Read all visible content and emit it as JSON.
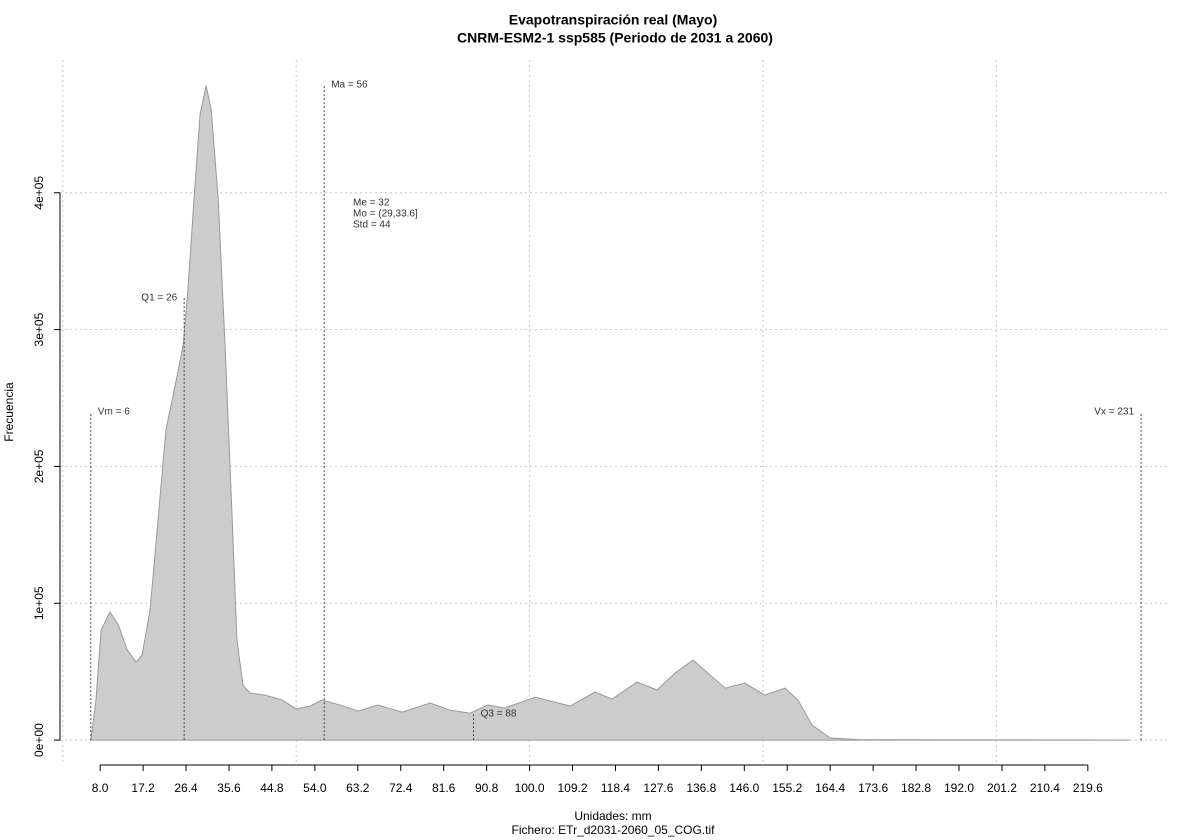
{
  "chart_data": {
    "type": "area",
    "title": "Evapotranspiración real (Mayo)",
    "subtitle": "CNRM-ESM2-1 ssp585 (Periodo de 2031 a 2060)",
    "xlabel": "Unidades: mm",
    "caption": "Fichero: ETr_d2031-2060_05_COG.tif",
    "ylabel": "Frecuencia",
    "color": "#cccccc",
    "grid": true,
    "x": [
      6,
      7.1,
      8.2,
      10.1,
      11.9,
      13.8,
      15.7,
      17.0,
      18.7,
      20.4,
      22.1,
      24.1,
      25.8,
      26.8,
      28.1,
      29.4,
      30.7,
      31.8,
      33.3,
      34.8,
      36.3,
      37.3,
      38.6,
      40.1,
      43.3,
      47.0,
      50.0,
      53.0,
      55.5,
      59.4,
      63.3,
      67.5,
      72.7,
      78.7,
      82.9,
      87.2,
      91.1,
      94.7,
      101.2,
      108.7,
      114.0,
      117.7,
      123.0,
      127.3,
      131.2,
      135.0,
      138.7,
      141.9,
      146.1,
      150.4,
      154.7,
      157.5,
      160.5,
      164.4,
      170.8,
      228.6
    ],
    "values": [
      0,
      29000,
      80400,
      93600,
      84100,
      65800,
      57000,
      62200,
      95100,
      160900,
      226700,
      259600,
      288800,
      329000,
      394900,
      457000,
      478200,
      460700,
      394900,
      285200,
      160900,
      73100,
      40200,
      34400,
      32900,
      29300,
      22700,
      24900,
      29300,
      25600,
      21200,
      25600,
      20500,
      27100,
      21900,
      19700,
      25600,
      23400,
      31400,
      24900,
      35100,
      30000,
      42400,
      36600,
      49000,
      58500,
      47500,
      38000,
      41700,
      32900,
      38000,
      29300,
      11000,
      1500,
      300,
      0
    ],
    "xlim": [
      -0.6,
      237.2
    ],
    "ylim": [
      -16000,
      497000
    ],
    "xticks": [
      {
        "value": 8,
        "label": "8.0"
      },
      17.2,
      26.4,
      35.6,
      44.8,
      {
        "value": 54,
        "label": "54.0"
      },
      63.2,
      72.4,
      81.6,
      90.8,
      {
        "value": 100,
        "label": "100.0"
      },
      109.2,
      118.4,
      127.6,
      136.8,
      {
        "value": 146,
        "label": "146.0"
      },
      155.2,
      164.4,
      173.6,
      182.8,
      {
        "value": 192,
        "label": "192.0"
      },
      201.2,
      210.4,
      219.6
    ],
    "xgrid": [
      0,
      50,
      100,
      150,
      200
    ],
    "yticks": [
      {
        "value": 0,
        "label": "0e+00"
      },
      {
        "value": 100000,
        "label": "1e+05"
      },
      {
        "value": 200000,
        "label": "2e+05"
      },
      {
        "value": 300000,
        "label": "3e+05"
      },
      {
        "value": 400000,
        "label": "4e+05"
      }
    ],
    "markers": [
      {
        "label": "Vm = 6",
        "x": 6
      },
      {
        "label": "Q1 = 26",
        "x": 26
      },
      {
        "label": "Ma = 56",
        "x": 56
      },
      {
        "label": "Q3 = 88",
        "x": 88
      },
      {
        "label": "Vx = 231",
        "x": 231
      }
    ],
    "stats": [
      "Me = 32",
      "Mo = (29,33.6]",
      "Std = 44"
    ]
  }
}
